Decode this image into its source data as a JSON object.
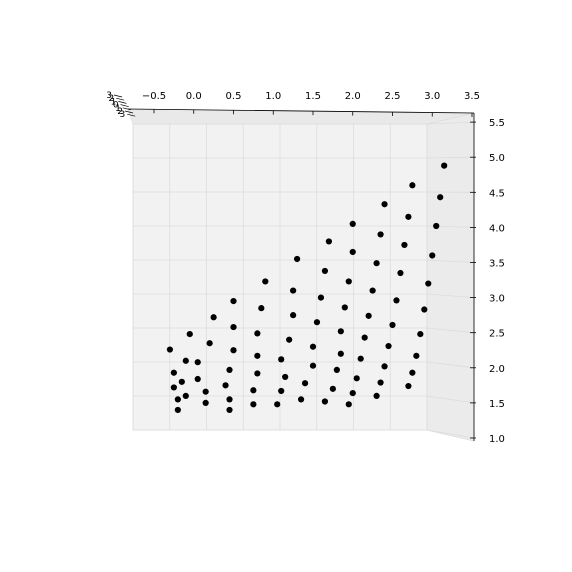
{
  "chart_data": {
    "type": "scatter",
    "projection": "3d",
    "title": "",
    "xlabel": "",
    "ylabel": "",
    "zlabel": "",
    "grid": true,
    "legend": "none",
    "marker_color": "#000000",
    "pane_color": "#f2f2f2",
    "x_ticks": [
      "−0.5",
      "0.0",
      "0.5",
      "1.0",
      "1.5",
      "2.0",
      "2.5",
      "3.0",
      "3.5"
    ],
    "x_range": [
      -0.5,
      3.5
    ],
    "z_ticks": [
      "1.0",
      "1.5",
      "2.0",
      "2.5",
      "3.0",
      "3.5",
      "4.0",
      "4.5",
      "5.0",
      "5.5"
    ],
    "z_range": [
      1.0,
      5.5
    ],
    "y_ticks_compressed": [
      "3",
      "2",
      "1",
      "0",
      "1",
      "2",
      "3"
    ],
    "points": [
      {
        "x": -0.2,
        "z": 1.4
      },
      {
        "x": -0.2,
        "z": 1.55
      },
      {
        "x": -0.25,
        "z": 1.72
      },
      {
        "x": -0.25,
        "z": 1.93
      },
      {
        "x": -0.3,
        "z": 2.26
      },
      {
        "x": -0.1,
        "z": 1.6
      },
      {
        "x": -0.15,
        "z": 1.8
      },
      {
        "x": -0.1,
        "z": 2.1
      },
      {
        "x": -0.05,
        "z": 2.48
      },
      {
        "x": 0.15,
        "z": 1.5
      },
      {
        "x": 0.15,
        "z": 1.66
      },
      {
        "x": 0.05,
        "z": 1.84
      },
      {
        "x": 0.05,
        "z": 2.08
      },
      {
        "x": 0.2,
        "z": 2.35
      },
      {
        "x": 0.25,
        "z": 2.72
      },
      {
        "x": 0.45,
        "z": 1.4
      },
      {
        "x": 0.45,
        "z": 1.55
      },
      {
        "x": 0.4,
        "z": 1.75
      },
      {
        "x": 0.45,
        "z": 1.97
      },
      {
        "x": 0.5,
        "z": 2.25
      },
      {
        "x": 0.5,
        "z": 2.58
      },
      {
        "x": 0.5,
        "z": 2.95
      },
      {
        "x": 0.75,
        "z": 1.48
      },
      {
        "x": 0.75,
        "z": 1.68
      },
      {
        "x": 0.8,
        "z": 1.92
      },
      {
        "x": 0.8,
        "z": 2.17
      },
      {
        "x": 0.8,
        "z": 2.49
      },
      {
        "x": 0.85,
        "z": 2.85
      },
      {
        "x": 0.9,
        "z": 3.23
      },
      {
        "x": 1.05,
        "z": 1.48
      },
      {
        "x": 1.1,
        "z": 1.67
      },
      {
        "x": 1.15,
        "z": 1.87
      },
      {
        "x": 1.1,
        "z": 2.12
      },
      {
        "x": 1.2,
        "z": 2.4
      },
      {
        "x": 1.25,
        "z": 2.75
      },
      {
        "x": 1.25,
        "z": 3.1
      },
      {
        "x": 1.3,
        "z": 3.55
      },
      {
        "x": 1.35,
        "z": 1.55
      },
      {
        "x": 1.4,
        "z": 1.78
      },
      {
        "x": 1.5,
        "z": 2.03
      },
      {
        "x": 1.5,
        "z": 2.3
      },
      {
        "x": 1.55,
        "z": 2.65
      },
      {
        "x": 1.6,
        "z": 3.0
      },
      {
        "x": 1.65,
        "z": 3.38
      },
      {
        "x": 1.7,
        "z": 3.8
      },
      {
        "x": 1.65,
        "z": 1.52
      },
      {
        "x": 1.75,
        "z": 1.7
      },
      {
        "x": 1.8,
        "z": 1.97
      },
      {
        "x": 1.85,
        "z": 2.2
      },
      {
        "x": 1.85,
        "z": 2.52
      },
      {
        "x": 1.9,
        "z": 2.86
      },
      {
        "x": 1.95,
        "z": 3.23
      },
      {
        "x": 2.0,
        "z": 3.65
      },
      {
        "x": 2.0,
        "z": 4.05
      },
      {
        "x": 1.95,
        "z": 1.48
      },
      {
        "x": 2.0,
        "z": 1.64
      },
      {
        "x": 2.05,
        "z": 1.85
      },
      {
        "x": 2.1,
        "z": 2.13
      },
      {
        "x": 2.15,
        "z": 2.43
      },
      {
        "x": 2.2,
        "z": 2.74
      },
      {
        "x": 2.25,
        "z": 3.1
      },
      {
        "x": 2.3,
        "z": 3.49
      },
      {
        "x": 2.35,
        "z": 3.9
      },
      {
        "x": 2.4,
        "z": 4.33
      },
      {
        "x": 2.3,
        "z": 1.6
      },
      {
        "x": 2.35,
        "z": 1.79
      },
      {
        "x": 2.4,
        "z": 2.02
      },
      {
        "x": 2.45,
        "z": 2.31
      },
      {
        "x": 2.5,
        "z": 2.61
      },
      {
        "x": 2.55,
        "z": 2.96
      },
      {
        "x": 2.6,
        "z": 3.35
      },
      {
        "x": 2.65,
        "z": 3.75
      },
      {
        "x": 2.7,
        "z": 4.15
      },
      {
        "x": 2.75,
        "z": 4.6
      },
      {
        "x": 2.7,
        "z": 1.74
      },
      {
        "x": 2.75,
        "z": 1.93
      },
      {
        "x": 2.8,
        "z": 2.17
      },
      {
        "x": 2.85,
        "z": 2.48
      },
      {
        "x": 2.9,
        "z": 2.83
      },
      {
        "x": 2.95,
        "z": 3.2
      },
      {
        "x": 3.0,
        "z": 3.6
      },
      {
        "x": 3.05,
        "z": 4.02
      },
      {
        "x": 3.1,
        "z": 4.43
      },
      {
        "x": 3.15,
        "z": 4.88
      }
    ]
  }
}
